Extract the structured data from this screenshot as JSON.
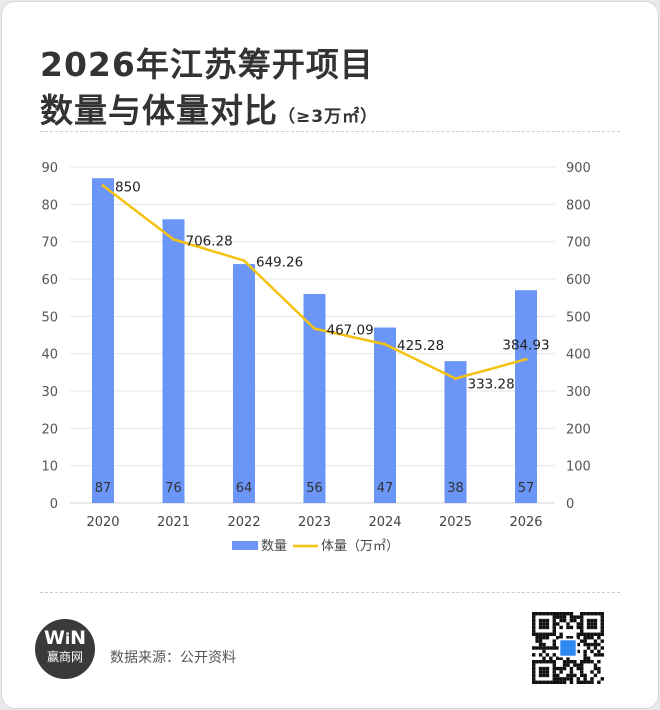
{
  "title": {
    "line1": "2026年江苏筹开项目",
    "line2": "数量与体量对比",
    "unit": "（≥3万㎡）"
  },
  "footer": {
    "logo_text": "WIN",
    "logo_name": "赢商网",
    "source": "数据来源：公开资料"
  },
  "colors": {
    "bar": "#6b96f7",
    "line": "#f5c211"
  },
  "chart_data": {
    "type": "bar+line",
    "categories": [
      "2020",
      "2021",
      "2022",
      "2023",
      "2024",
      "2025",
      "2026"
    ],
    "series": [
      {
        "name": "数量",
        "type": "bar",
        "axis": "left",
        "values": [
          87,
          76,
          64,
          56,
          47,
          38,
          57
        ],
        "labels": [
          "87",
          "76",
          "64",
          "56",
          "47",
          "38",
          "57"
        ]
      },
      {
        "name": "体量（万㎡）",
        "type": "line",
        "axis": "right",
        "values": [
          850,
          706.28,
          649.26,
          467.09,
          425.28,
          333.28,
          384.93
        ],
        "labels": [
          "850",
          "706.28",
          "649.26",
          "467.09",
          "425.28",
          "333.28",
          "384.93"
        ]
      }
    ],
    "ylim_left": [
      0,
      90
    ],
    "yticks_left": [
      "0",
      "10",
      "20",
      "30",
      "40",
      "50",
      "60",
      "70",
      "80",
      "90"
    ],
    "ylim_right": [
      0,
      900
    ],
    "yticks_right": [
      "0",
      "100",
      "200",
      "300",
      "400",
      "500",
      "600",
      "700",
      "800",
      "900"
    ],
    "grid": true,
    "legend": "bottom"
  }
}
